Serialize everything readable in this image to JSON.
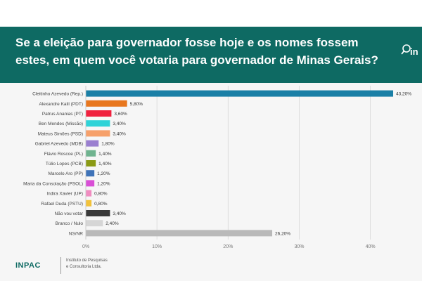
{
  "header": {
    "title": "Se a eleição para governador fosse hoje e os nomes fossem estes, em quem você votaria para governador de Minas Gerais?"
  },
  "footer": {
    "brand": "INPAC",
    "subtitle_line1": "Instituto de Pesquisas",
    "subtitle_line2": "e Consultoria Ltda."
  },
  "logo": {
    "text": "in",
    "icon": "magnifier-icon"
  },
  "chart_data": {
    "type": "bar",
    "orientation": "horizontal",
    "categories": [
      "Cleitinho Azevedo (Rep.)",
      "Alexandre Kalil (PDT)",
      "Patrus Ananias (PT)",
      "Ben Mendes (Missão)",
      "Mateus Simões (PSD)",
      "Gabriel Azevedo (MDB)",
      "Flávio Roscoe (PL)",
      "Túlio Lopes (PCB)",
      "Marcelo Aro (PP)",
      "Maria da Consolação (PSOL)",
      "Indira Xavier (UP)",
      "Rafael Duda (PSTU)",
      "Não vou votar",
      "Branco / Nulo",
      "NS/NR"
    ],
    "values": [
      43.2,
      5.8,
      3.6,
      3.4,
      3.4,
      1.8,
      1.4,
      1.4,
      1.2,
      1.2,
      0.8,
      0.8,
      3.4,
      2.4,
      26.2
    ],
    "value_labels": [
      "43,20%",
      "5,80%",
      "3,60%",
      "3,40%",
      "3,40%",
      "1,80%",
      "1,40%",
      "1,40%",
      "1,20%",
      "1,20%",
      "0,80%",
      "0,80%",
      "3,40%",
      "2,40%",
      "26,20%"
    ],
    "colors": [
      "#1a7fa6",
      "#e8771e",
      "#f0213e",
      "#2fd3d8",
      "#f6a06a",
      "#9a7fd0",
      "#6fb38f",
      "#8a9a14",
      "#3f73b8",
      "#d94fd6",
      "#f08cc0",
      "#f2c23a",
      "#3a3a3a",
      "#d6d6d6",
      "#b9b9b9"
    ],
    "xlim": [
      0,
      43.2
    ],
    "xticks": [
      0,
      10,
      20,
      30,
      40
    ],
    "xtick_labels": [
      "0%",
      "10%",
      "20%",
      "30%",
      "40%"
    ],
    "grid": true,
    "legend": "none"
  }
}
